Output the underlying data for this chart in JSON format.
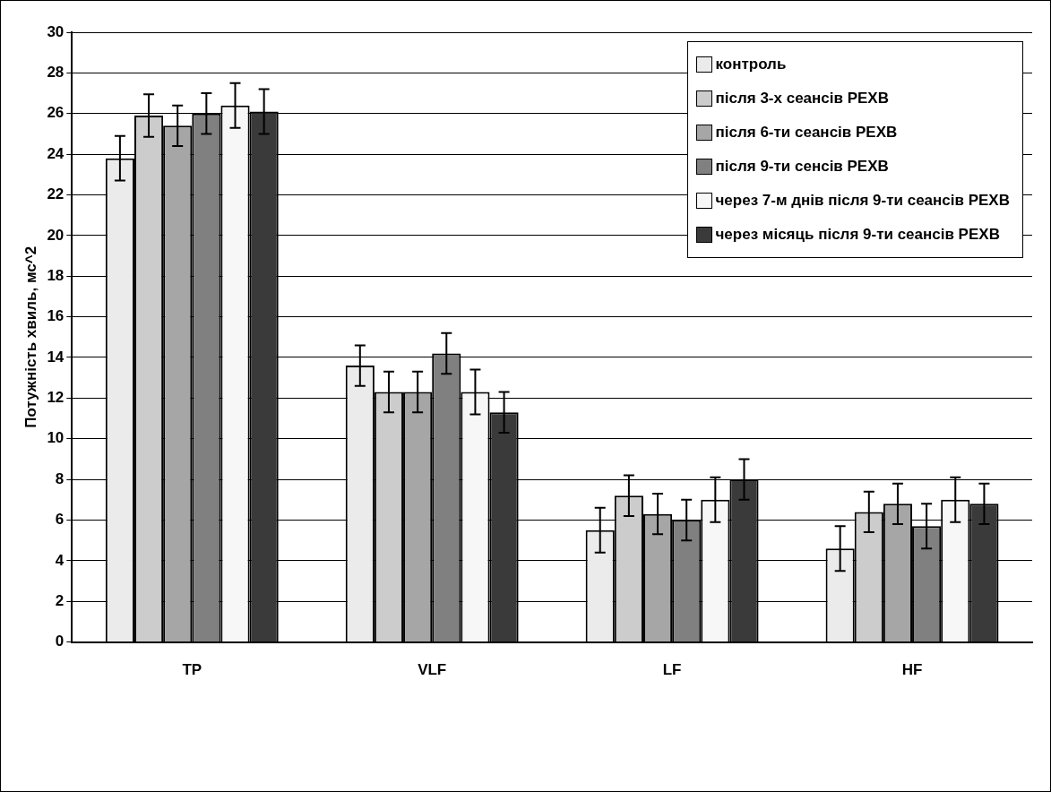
{
  "chart_data": {
    "type": "bar",
    "ylabel": "Потужність хвиль, мс^2",
    "categories": [
      "TP",
      "VLF",
      "LF",
      "HF"
    ],
    "series": [
      {
        "name": "контроль",
        "color": "#ebebeb",
        "values": [
          23.8,
          13.6,
          5.5,
          4.6
        ],
        "errors": [
          1.1,
          1.0,
          1.1,
          1.1
        ]
      },
      {
        "name": "після 3-х сеансів РЕХВ",
        "color": "#cccccc",
        "values": [
          25.9,
          12.3,
          7.2,
          6.4
        ],
        "errors": [
          1.05,
          1.0,
          1.0,
          1.0
        ]
      },
      {
        "name": "після 6-ти сеансів РЕХВ",
        "color": "#a6a6a6",
        "values": [
          25.4,
          12.3,
          6.3,
          6.8
        ],
        "errors": [
          1.0,
          1.0,
          1.0,
          1.0
        ]
      },
      {
        "name": "після 9-ти сенсів РЕХВ",
        "color": "#808080",
        "values": [
          26.0,
          14.2,
          6.0,
          5.7
        ],
        "errors": [
          1.0,
          1.0,
          1.0,
          1.1
        ]
      },
      {
        "name": "через 7-м днів після 9-ти сеансів РЕХВ",
        "color": "#f7f7f7",
        "values": [
          26.4,
          12.3,
          7.0,
          7.0
        ],
        "errors": [
          1.1,
          1.1,
          1.1,
          1.1
        ]
      },
      {
        "name": "через місяць після 9-ти сеансів РЕХВ",
        "color": "#3a3a3a",
        "values": [
          26.1,
          11.3,
          8.0,
          6.8
        ],
        "errors": [
          1.1,
          1.0,
          1.0,
          1.0
        ]
      }
    ],
    "ylim": [
      0,
      30
    ],
    "yticks": [
      0,
      2,
      4,
      6,
      8,
      10,
      12,
      14,
      16,
      18,
      20,
      22,
      24,
      26,
      28,
      30
    ],
    "grid": "y",
    "legend": "top right"
  }
}
